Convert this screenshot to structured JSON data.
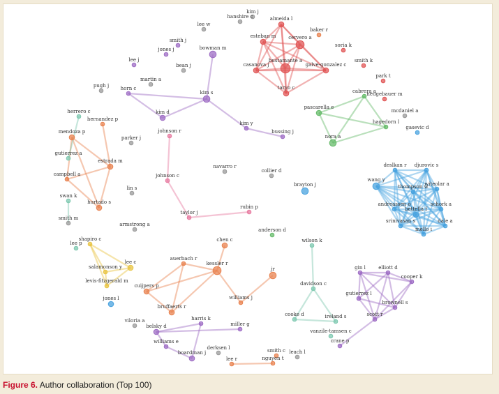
{
  "caption": {
    "label": "Figure 6.",
    "text": "Author collaboration (Top 100)"
  },
  "colors": {
    "red": "#e05555",
    "orange": "#e8824f",
    "purple": "#9d6cc4",
    "green": "#66bb6a",
    "blue": "#4aa3df",
    "pink": "#e77aa0",
    "yellow": "#e8c443",
    "teal": "#7ec8b0",
    "gray": "#9a9a9a"
  },
  "nodes": [
    {
      "id": "kim_j",
      "label": "kim j",
      "c": "gray",
      "r": 2
    },
    {
      "id": "almeida_l",
      "label": "almeida l",
      "c": "red",
      "r": 3
    },
    {
      "id": "hanshire_c",
      "label": "hanshire c",
      "c": "gray",
      "r": 2
    },
    {
      "id": "baker_r",
      "label": "baker r",
      "c": "orange",
      "r": 2
    },
    {
      "id": "lee_w",
      "label": "lee w",
      "c": "gray",
      "r": 2
    },
    {
      "id": "esteban_m",
      "label": "esteban m",
      "c": "red",
      "r": 3
    },
    {
      "id": "cervero_a",
      "label": "cervero a",
      "c": "red",
      "r": 5
    },
    {
      "id": "smith_j",
      "label": "smith j",
      "c": "purple",
      "r": 2
    },
    {
      "id": "soria_k",
      "label": "soria k",
      "c": "red",
      "r": 2
    },
    {
      "id": "jones_j",
      "label": "jones j",
      "c": "purple",
      "r": 2
    },
    {
      "id": "bowman_m",
      "label": "bowman m",
      "c": "purple",
      "r": 4
    },
    {
      "id": "lee_j",
      "label": "lee j",
      "c": "purple",
      "r": 2
    },
    {
      "id": "bean_j",
      "label": "bean j",
      "c": "gray",
      "r": 2
    },
    {
      "id": "smith_k",
      "label": "smith k",
      "c": "red",
      "r": 2
    },
    {
      "id": "casanova_j",
      "label": "casanova j",
      "c": "red",
      "r": 3
    },
    {
      "id": "bustamante_a",
      "label": "bustamante a",
      "c": "red",
      "r": 6
    },
    {
      "id": "galve_gonzalez_c",
      "label": "galve-gonzalez c",
      "c": "red",
      "r": 3
    },
    {
      "id": "martin_a",
      "label": "martin a",
      "c": "gray",
      "r": 2
    },
    {
      "id": "park_t",
      "label": "park t",
      "c": "red",
      "r": 2
    },
    {
      "id": "pugh_j",
      "label": "pugh j",
      "c": "gray",
      "r": 2
    },
    {
      "id": "horn_c",
      "label": "horn c",
      "c": "purple",
      "r": 2
    },
    {
      "id": "taryo_c",
      "label": "taryo c",
      "c": "red",
      "r": 3
    },
    {
      "id": "kim_s",
      "label": "kim s",
      "c": "purple",
      "r": 4
    },
    {
      "id": "cabrera_a",
      "label": "cabrera a",
      "c": "green",
      "r": 2
    },
    {
      "id": "neugebauer_m",
      "label": "neugebauer m",
      "c": "red",
      "r": 2
    },
    {
      "id": "herrero_c",
      "label": "herrero c",
      "c": "teal",
      "r": 2
    },
    {
      "id": "kim_d",
      "label": "kim d",
      "c": "purple",
      "r": 3
    },
    {
      "id": "pascarella_e",
      "label": "pascarella e",
      "c": "green",
      "r": 3
    },
    {
      "id": "mcdaniel_a",
      "label": "mcdaniel a",
      "c": "gray",
      "r": 2
    },
    {
      "id": "hernandez_p",
      "label": "hernandez p",
      "c": "orange",
      "r": 2
    },
    {
      "id": "hagedorn_l",
      "label": "hagedorn l",
      "c": "green",
      "r": 2
    },
    {
      "id": "gasevic_d",
      "label": "gasevic d",
      "c": "blue",
      "r": 2
    },
    {
      "id": "kim_y",
      "label": "kim y",
      "c": "purple",
      "r": 2
    },
    {
      "id": "mendoza_p",
      "label": "mendoza p",
      "c": "orange",
      "r": 3
    },
    {
      "id": "parker_j",
      "label": "parker j",
      "c": "gray",
      "r": 2
    },
    {
      "id": "johnson_r",
      "label": "johnson r",
      "c": "pink",
      "r": 2
    },
    {
      "id": "bussing_j",
      "label": "bussing j",
      "c": "purple",
      "r": 2
    },
    {
      "id": "nora_a",
      "label": "nora a",
      "c": "green",
      "r": 4
    },
    {
      "id": "gutierrez_a",
      "label": "gutierrez a",
      "c": "teal",
      "r": 2
    },
    {
      "id": "estrada_m",
      "label": "estrada m",
      "c": "orange",
      "r": 3
    },
    {
      "id": "deslkan_r",
      "label": "deslkan r",
      "c": "blue",
      "r": 2
    },
    {
      "id": "djurovic_s",
      "label": "djurovic s",
      "c": "blue",
      "r": 2
    },
    {
      "id": "navarro_r",
      "label": "navarro r",
      "c": "gray",
      "r": 2
    },
    {
      "id": "collier_d",
      "label": "collier d",
      "c": "gray",
      "r": 2
    },
    {
      "id": "johnson_c",
      "label": "johnson c",
      "c": "pink",
      "r": 2
    },
    {
      "id": "campbell_a",
      "label": "campbell a",
      "c": "orange",
      "r": 2
    },
    {
      "id": "wang_y",
      "label": "wang y",
      "c": "blue",
      "r": 4
    },
    {
      "id": "thompson_w",
      "label": "thompson w",
      "c": "blue",
      "r": 2
    },
    {
      "id": "witeolar_a",
      "label": "witeolar a",
      "c": "blue",
      "r": 2
    },
    {
      "id": "brayton_j",
      "label": "brayton j",
      "c": "blue",
      "r": 4
    },
    {
      "id": "lin_s",
      "label": "lin s",
      "c": "gray",
      "r": 2
    },
    {
      "id": "swan_k",
      "label": "swan k",
      "c": "teal",
      "r": 2
    },
    {
      "id": "hurtado_s",
      "label": "hurtado s",
      "c": "orange",
      "r": 3
    },
    {
      "id": "rubin_p",
      "label": "rubin p",
      "c": "pink",
      "r": 2
    },
    {
      "id": "andreassen_o",
      "label": "andreassen o",
      "c": "blue",
      "r": 2
    },
    {
      "id": "schork_a",
      "label": "schork a",
      "c": "blue",
      "r": 2
    },
    {
      "id": "taylor_j",
      "label": "taylor j",
      "c": "pink",
      "r": 2
    },
    {
      "id": "bettella_f",
      "label": "bettella f",
      "c": "blue",
      "r": 3
    },
    {
      "id": "smith_m",
      "label": "smith m",
      "c": "gray",
      "r": 2
    },
    {
      "id": "srinivasan_s",
      "label": "srinivasan s",
      "c": "blue",
      "r": 2
    },
    {
      "id": "dale_a",
      "label": "dale a",
      "c": "blue",
      "r": 2
    },
    {
      "id": "armstrong_a",
      "label": "armstrong a",
      "c": "gray",
      "r": 2
    },
    {
      "id": "anderson_d",
      "label": "anderson d",
      "c": "green",
      "r": 2
    },
    {
      "id": "mello_i",
      "label": "mello i",
      "c": "blue",
      "r": 2
    },
    {
      "id": "wilson_k",
      "label": "wilson k",
      "c": "teal",
      "r": 2
    },
    {
      "id": "shapiro_c",
      "label": "shapiro c",
      "c": "yellow",
      "r": 2
    },
    {
      "id": "lee_p",
      "label": "lee p",
      "c": "teal",
      "r": 2
    },
    {
      "id": "chen_c",
      "label": "chen c",
      "c": "orange",
      "r": 3
    },
    {
      "id": "auerbach_r",
      "label": "auerbach r",
      "c": "orange",
      "r": 2
    },
    {
      "id": "lee_c",
      "label": "lee c",
      "c": "yellow",
      "r": 3
    },
    {
      "id": "salamonson_y",
      "label": "salamonson y",
      "c": "yellow",
      "r": 2
    },
    {
      "id": "kessler_r",
      "label": "kessler r",
      "c": "orange",
      "r": 5
    },
    {
      "id": "jr",
      "label": "jr",
      "c": "orange",
      "r": 4
    },
    {
      "id": "gin_l",
      "label": "gin l",
      "c": "purple",
      "r": 2
    },
    {
      "id": "elliott_d",
      "label": "elliott d",
      "c": "purple",
      "r": 2
    },
    {
      "id": "levis_fitzgerald_m",
      "label": "levis-fitzgerald m",
      "c": "yellow",
      "r": 2
    },
    {
      "id": "cuijpers_p",
      "label": "cuijpers p",
      "c": "orange",
      "r": 3
    },
    {
      "id": "davidson_c",
      "label": "davidson c",
      "c": "teal",
      "r": 2
    },
    {
      "id": "cooper_k",
      "label": "cooper k",
      "c": "purple",
      "r": 2
    },
    {
      "id": "gutierrez_l",
      "label": "gutierrez l",
      "c": "purple",
      "r": 2
    },
    {
      "id": "jones_l",
      "label": "jones l",
      "c": "blue",
      "r": 3
    },
    {
      "id": "williams_j",
      "label": "williams j",
      "c": "orange",
      "r": 2
    },
    {
      "id": "bruffaerts_r",
      "label": "bruffaerts r",
      "c": "orange",
      "r": 3
    },
    {
      "id": "brownell_s",
      "label": "brownell s",
      "c": "purple",
      "r": 2
    },
    {
      "id": "scott_r",
      "label": "scott r",
      "c": "purple",
      "r": 2
    },
    {
      "id": "harris_k",
      "label": "harris k",
      "c": "purple",
      "r": 2
    },
    {
      "id": "cooke_d",
      "label": "cooke d",
      "c": "teal",
      "r": 2
    },
    {
      "id": "ireland_s",
      "label": "ireland s",
      "c": "teal",
      "r": 2
    },
    {
      "id": "viloria_a",
      "label": "viloria a",
      "c": "gray",
      "r": 2
    },
    {
      "id": "belsky_d",
      "label": "belsky d",
      "c": "purple",
      "r": 3
    },
    {
      "id": "miller_g",
      "label": "miller g",
      "c": "purple",
      "r": 2
    },
    {
      "id": "vanzile_tamsen_c",
      "label": "vanzile-tamsen c",
      "c": "teal",
      "r": 2
    },
    {
      "id": "crane_p",
      "label": "crane p",
      "c": "purple",
      "r": 2
    },
    {
      "id": "williams_e",
      "label": "williams e",
      "c": "purple",
      "r": 2
    },
    {
      "id": "derksen_l",
      "label": "derksen l",
      "c": "gray",
      "r": 2
    },
    {
      "id": "boardman_j",
      "label": "boardman j",
      "c": "purple",
      "r": 3
    },
    {
      "id": "smith_c",
      "label": "smith c",
      "c": "orange",
      "r": 2
    },
    {
      "id": "leach_l",
      "label": "leach l",
      "c": "gray",
      "r": 2
    },
    {
      "id": "lee_r",
      "label": "lee r",
      "c": "orange",
      "r": 2
    },
    {
      "id": "nguyen_t",
      "label": "nguyen t",
      "c": "orange",
      "r": 2
    }
  ],
  "edges": [
    [
      "almeida_l",
      "cervero_a",
      "red"
    ],
    [
      "almeida_l",
      "esteban_m",
      "red"
    ],
    [
      "almeida_l",
      "bustamante_a",
      "red"
    ],
    [
      "almeida_l",
      "galve_gonzalez_c",
      "red"
    ],
    [
      "almeida_l",
      "casanova_j",
      "red"
    ],
    [
      "almeida_l",
      "taryo_c",
      "red"
    ],
    [
      "esteban_m",
      "cervero_a",
      "red"
    ],
    [
      "esteban_m",
      "bustamante_a",
      "red"
    ],
    [
      "esteban_m",
      "casanova_j",
      "red"
    ],
    [
      "esteban_m",
      "galve_gonzalez_c",
      "red"
    ],
    [
      "esteban_m",
      "taryo_c",
      "red"
    ],
    [
      "cervero_a",
      "bustamante_a",
      "red"
    ],
    [
      "cervero_a",
      "galve_gonzalez_c",
      "red"
    ],
    [
      "cervero_a",
      "casanova_j",
      "red"
    ],
    [
      "cervero_a",
      "taryo_c",
      "red"
    ],
    [
      "casanova_j",
      "bustamante_a",
      "red"
    ],
    [
      "casanova_j",
      "taryo_c",
      "red"
    ],
    [
      "casanova_j",
      "galve_gonzalez_c",
      "red"
    ],
    [
      "bustamante_a",
      "galve_gonzalez_c",
      "red"
    ],
    [
      "bustamante_a",
      "taryo_c",
      "red"
    ],
    [
      "galve_gonzalez_c",
      "taryo_c",
      "red"
    ],
    [
      "bowman_m",
      "kim_s",
      "purple"
    ],
    [
      "horn_c",
      "kim_s",
      "purple"
    ],
    [
      "kim_s",
      "kim_d",
      "purple"
    ],
    [
      "horn_c",
      "kim_d",
      "purple"
    ],
    [
      "kim_s",
      "kim_y",
      "purple"
    ],
    [
      "kim_y",
      "bussing_j",
      "purple"
    ],
    [
      "cabrera_a",
      "pascarella_e",
      "green"
    ],
    [
      "cabrera_a",
      "hagedorn_l",
      "green"
    ],
    [
      "pascarella_e",
      "nora_a",
      "green"
    ],
    [
      "pascarella_e",
      "hagedorn_l",
      "green"
    ],
    [
      "hagedorn_l",
      "nora_a",
      "green"
    ],
    [
      "cabrera_a",
      "nora_a",
      "green"
    ],
    [
      "hernandez_p",
      "estrada_m",
      "orange"
    ],
    [
      "mendoza_p",
      "estrada_m",
      "orange"
    ],
    [
      "estrada_m",
      "campbell_a",
      "orange"
    ],
    [
      "estrada_m",
      "hurtado_s",
      "orange"
    ],
    [
      "campbell_a",
      "hurtado_s",
      "orange"
    ],
    [
      "mendoza_p",
      "campbell_a",
      "orange"
    ],
    [
      "mendoza_p",
      "hurtado_s",
      "orange"
    ],
    [
      "herrero_c",
      "gutierrez_a",
      "teal"
    ],
    [
      "swan_k",
      "smith_m",
      "teal"
    ],
    [
      "johnson_r",
      "johnson_c",
      "pink"
    ],
    [
      "johnson_c",
      "taylor_j",
      "pink"
    ],
    [
      "taylor_j",
      "rubin_p",
      "pink"
    ],
    [
      "deslkan_r",
      "djurovic_s",
      "blue"
    ],
    [
      "deslkan_r",
      "wang_y",
      "blue"
    ],
    [
      "deslkan_r",
      "thompson_w",
      "blue"
    ],
    [
      "deslkan_r",
      "witeolar_a",
      "blue"
    ],
    [
      "deslkan_r",
      "andreassen_o",
      "blue"
    ],
    [
      "deslkan_r",
      "bettella_f",
      "blue"
    ],
    [
      "deslkan_r",
      "schork_a",
      "blue"
    ],
    [
      "deslkan_r",
      "srinivasan_s",
      "blue"
    ],
    [
      "deslkan_r",
      "dale_a",
      "blue"
    ],
    [
      "deslkan_r",
      "mello_i",
      "blue"
    ],
    [
      "djurovic_s",
      "wang_y",
      "blue"
    ],
    [
      "djurovic_s",
      "thompson_w",
      "blue"
    ],
    [
      "djurovic_s",
      "witeolar_a",
      "blue"
    ],
    [
      "djurovic_s",
      "andreassen_o",
      "blue"
    ],
    [
      "djurovic_s",
      "bettella_f",
      "blue"
    ],
    [
      "djurovic_s",
      "schork_a",
      "blue"
    ],
    [
      "djurovic_s",
      "srinivasan_s",
      "blue"
    ],
    [
      "djurovic_s",
      "dale_a",
      "blue"
    ],
    [
      "djurovic_s",
      "mello_i",
      "blue"
    ],
    [
      "wang_y",
      "thompson_w",
      "blue"
    ],
    [
      "wang_y",
      "witeolar_a",
      "blue"
    ],
    [
      "wang_y",
      "andreassen_o",
      "blue"
    ],
    [
      "wang_y",
      "bettella_f",
      "blue"
    ],
    [
      "wang_y",
      "schork_a",
      "blue"
    ],
    [
      "wang_y",
      "srinivasan_s",
      "blue"
    ],
    [
      "wang_y",
      "dale_a",
      "blue"
    ],
    [
      "wang_y",
      "mello_i",
      "blue"
    ],
    [
      "thompson_w",
      "witeolar_a",
      "blue"
    ],
    [
      "thompson_w",
      "andreassen_o",
      "blue"
    ],
    [
      "thompson_w",
      "bettella_f",
      "blue"
    ],
    [
      "thompson_w",
      "schork_a",
      "blue"
    ],
    [
      "thompson_w",
      "srinivasan_s",
      "blue"
    ],
    [
      "thompson_w",
      "dale_a",
      "blue"
    ],
    [
      "thompson_w",
      "mello_i",
      "blue"
    ],
    [
      "witeolar_a",
      "andreassen_o",
      "blue"
    ],
    [
      "witeolar_a",
      "bettella_f",
      "blue"
    ],
    [
      "witeolar_a",
      "schork_a",
      "blue"
    ],
    [
      "witeolar_a",
      "srinivasan_s",
      "blue"
    ],
    [
      "witeolar_a",
      "dale_a",
      "blue"
    ],
    [
      "witeolar_a",
      "mello_i",
      "blue"
    ],
    [
      "andreassen_o",
      "bettella_f",
      "blue"
    ],
    [
      "andreassen_o",
      "schork_a",
      "blue"
    ],
    [
      "andreassen_o",
      "srinivasan_s",
      "blue"
    ],
    [
      "andreassen_o",
      "dale_a",
      "blue"
    ],
    [
      "andreassen_o",
      "mello_i",
      "blue"
    ],
    [
      "bettella_f",
      "schork_a",
      "blue"
    ],
    [
      "bettella_f",
      "srinivasan_s",
      "blue"
    ],
    [
      "bettella_f",
      "dale_a",
      "blue"
    ],
    [
      "bettella_f",
      "mello_i",
      "blue"
    ],
    [
      "schork_a",
      "srinivasan_s",
      "blue"
    ],
    [
      "schork_a",
      "dale_a",
      "blue"
    ],
    [
      "schork_a",
      "mello_i",
      "blue"
    ],
    [
      "srinivasan_s",
      "dale_a",
      "blue"
    ],
    [
      "srinivasan_s",
      "mello_i",
      "blue"
    ],
    [
      "dale_a",
      "mello_i",
      "blue"
    ],
    [
      "shapiro_c",
      "lee_c",
      "yellow"
    ],
    [
      "shapiro_c",
      "salamonson_y",
      "yellow"
    ],
    [
      "shapiro_c",
      "levis_fitzgerald_m",
      "yellow"
    ],
    [
      "lee_c",
      "salamonson_y",
      "yellow"
    ],
    [
      "lee_c",
      "levis_fitzgerald_m",
      "yellow"
    ],
    [
      "salamonson_y",
      "levis_fitzgerald_m",
      "yellow"
    ],
    [
      "chen_c",
      "kessler_r",
      "orange"
    ],
    [
      "auerbach_r",
      "kessler_r",
      "orange"
    ],
    [
      "auerbach_r",
      "cuijpers_p",
      "orange"
    ],
    [
      "auerbach_r",
      "bruffaerts_r",
      "orange"
    ],
    [
      "kessler_r",
      "cuijpers_p",
      "orange"
    ],
    [
      "kessler_r",
      "bruffaerts_r",
      "orange"
    ],
    [
      "kessler_r",
      "williams_j",
      "orange"
    ],
    [
      "cuijpers_p",
      "bruffaerts_r",
      "orange"
    ],
    [
      "jr",
      "williams_j",
      "orange"
    ],
    [
      "gin_l",
      "elliott_d",
      "purple"
    ],
    [
      "gin_l",
      "cooper_k",
      "purple"
    ],
    [
      "gin_l",
      "gutierrez_l",
      "purple"
    ],
    [
      "gin_l",
      "brownell_s",
      "purple"
    ],
    [
      "gin_l",
      "scott_r",
      "purple"
    ],
    [
      "elliott_d",
      "cooper_k",
      "purple"
    ],
    [
      "elliott_d",
      "gutierrez_l",
      "purple"
    ],
    [
      "elliott_d",
      "brownell_s",
      "purple"
    ],
    [
      "elliott_d",
      "scott_r",
      "purple"
    ],
    [
      "cooper_k",
      "brownell_s",
      "purple"
    ],
    [
      "cooper_k",
      "scott_r",
      "purple"
    ],
    [
      "gutierrez_l",
      "scott_r",
      "purple"
    ],
    [
      "gutierrez_l",
      "brownell_s",
      "purple"
    ],
    [
      "brownell_s",
      "scott_r",
      "purple"
    ],
    [
      "scott_r",
      "crane_p",
      "purple"
    ],
    [
      "wilson_k",
      "davidson_c",
      "teal"
    ],
    [
      "davidson_c",
      "cooke_d",
      "teal"
    ],
    [
      "davidson_c",
      "ireland_s",
      "teal"
    ],
    [
      "cooke_d",
      "ireland_s",
      "teal"
    ],
    [
      "harris_k",
      "belsky_d",
      "purple"
    ],
    [
      "belsky_d",
      "miller_g",
      "purple"
    ],
    [
      "belsky_d",
      "williams_e",
      "purple"
    ],
    [
      "williams_e",
      "boardman_j",
      "purple"
    ],
    [
      "harris_k",
      "boardman_j",
      "purple"
    ],
    [
      "lee_r",
      "nguyen_t",
      "orange"
    ]
  ]
}
